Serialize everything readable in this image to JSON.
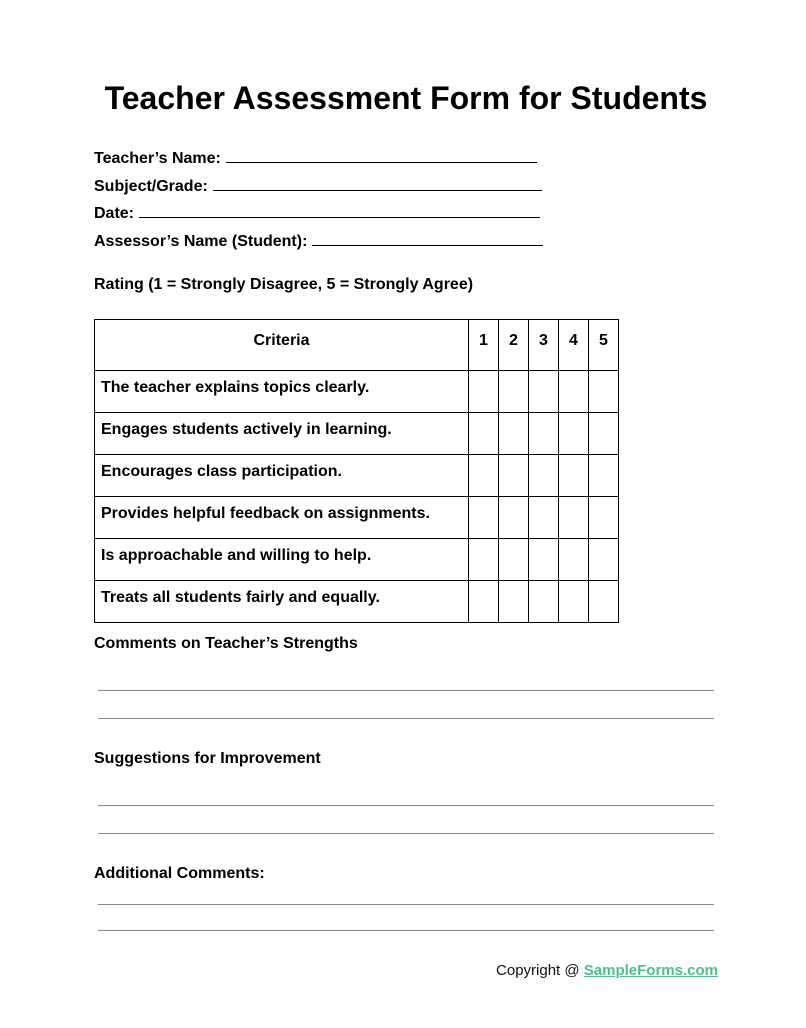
{
  "title": "Teacher Assessment Form for Students",
  "fields": [
    {
      "label": "Teacher’s Name:"
    },
    {
      "label": "Subject/Grade:"
    },
    {
      "label": "Date:"
    },
    {
      "label": "Assessor’s Name (Student):"
    }
  ],
  "rating_note": "Rating (1 = Strongly Disagree, 5 = Strongly Agree)",
  "table": {
    "header": [
      "Criteria",
      "1",
      "2",
      "3",
      "4",
      "5"
    ],
    "rows": [
      "The teacher explains topics clearly.",
      "Engages students actively in learning.",
      "Encourages class participation.",
      "Provides helpful feedback on assignments.",
      "Is approachable and willing to help.",
      "Treats all students fairly and equally."
    ]
  },
  "sections": {
    "strengths": "Comments on Teacher’s Strengths",
    "improvement": "Suggestions for Improvement",
    "additional": "Additional Comments:"
  },
  "footer": {
    "prefix": "Copyright @ ",
    "link": "SampleForms.com",
    "link_color": "#4fbf8c"
  }
}
